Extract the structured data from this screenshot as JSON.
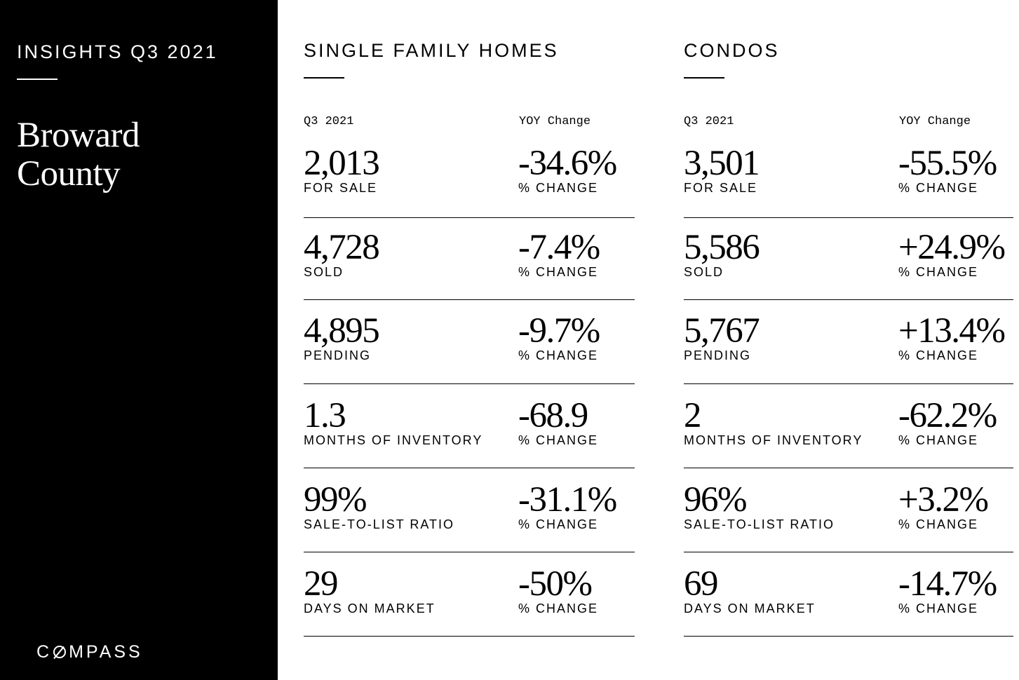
{
  "sidebar": {
    "kicker": "INSIGHTS Q3 2021",
    "county_line1": "Broward",
    "county_line2": "County",
    "logo_before": "C",
    "logo_after": "MPASS"
  },
  "colors": {
    "sidebar_bg": "#000000",
    "page_bg": "#ffffff",
    "text": "#000000"
  },
  "sections": [
    {
      "title": "SINGLE FAMILY HOMES",
      "col_period": "Q3 2021",
      "col_change": "YOY Change",
      "rows": [
        {
          "value": "2,013",
          "label": "FOR SALE",
          "change": "-34.6%",
          "change_label": "% CHANGE"
        },
        {
          "value": "4,728",
          "label": "SOLD",
          "change": "-7.4%",
          "change_label": "% CHANGE"
        },
        {
          "value": "4,895",
          "label": "PENDING",
          "change": "-9.7%",
          "change_label": "% CHANGE"
        },
        {
          "value": "1.3",
          "label": "MONTHS OF INVENTORY",
          "change": "-68.9",
          "change_label": "% CHANGE"
        },
        {
          "value": "99%",
          "label": "SALE-TO-LIST RATIO",
          "change": "-31.1%",
          "change_label": "% CHANGE"
        },
        {
          "value": "29",
          "label": "DAYS ON MARKET",
          "change": "-50%",
          "change_label": "% CHANGE"
        }
      ]
    },
    {
      "title": "CONDOS",
      "col_period": "Q3 2021",
      "col_change": "YOY Change",
      "rows": [
        {
          "value": "3,501",
          "label": "FOR SALE",
          "change": "-55.5%",
          "change_label": "% CHANGE"
        },
        {
          "value": "5,586",
          "label": "SOLD",
          "change": "+24.9%",
          "change_label": "% CHANGE"
        },
        {
          "value": "5,767",
          "label": "PENDING",
          "change": "+13.4%",
          "change_label": "% CHANGE"
        },
        {
          "value": "2",
          "label": "MONTHS OF INVENTORY",
          "change": "-62.2%",
          "change_label": "% CHANGE"
        },
        {
          "value": "96%",
          "label": "SALE-TO-LIST RATIO",
          "change": "+3.2%",
          "change_label": "% CHANGE"
        },
        {
          "value": "69",
          "label": "DAYS ON MARKET",
          "change": "-14.7%",
          "change_label": "% CHANGE"
        }
      ]
    }
  ]
}
